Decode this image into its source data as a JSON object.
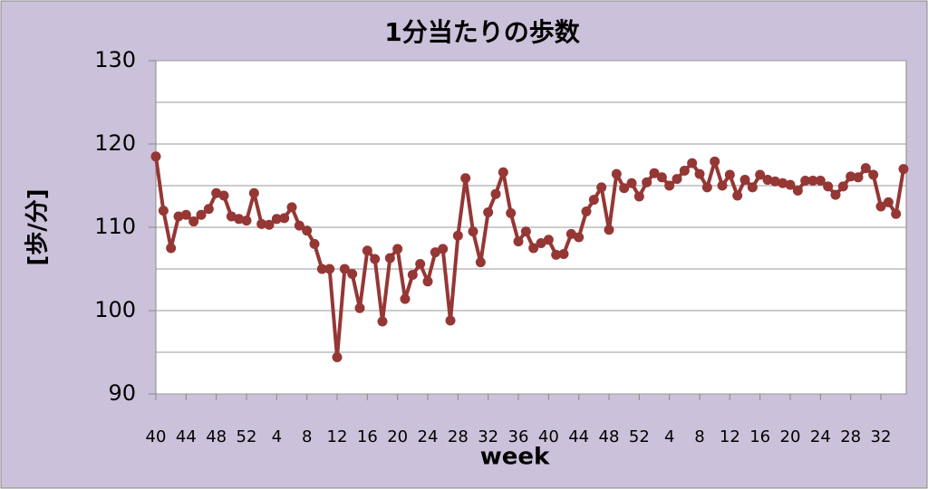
{
  "chart_data": {
    "type": "line",
    "title": "1分当たりの歩数",
    "y_label": "[歩/分]",
    "x_label": "week",
    "categories": [
      "40",
      null,
      null,
      null,
      "44",
      null,
      null,
      null,
      "48",
      null,
      null,
      null,
      "52",
      null,
      null,
      null,
      "4",
      null,
      null,
      null,
      "8",
      null,
      null,
      null,
      "12",
      null,
      null,
      null,
      "16",
      null,
      null,
      null,
      "20",
      null,
      null,
      null,
      "24",
      null,
      null,
      null,
      "28",
      null,
      null,
      null,
      "32",
      null,
      null,
      null,
      "36",
      null,
      null,
      null,
      "40",
      null,
      null,
      null,
      "44",
      null,
      null,
      null,
      "48",
      null,
      null,
      null,
      "52",
      null,
      null,
      null,
      "4",
      null,
      null,
      null,
      "8",
      null,
      null,
      null,
      "12",
      null,
      null,
      null,
      "16",
      null,
      null,
      null,
      "20",
      null,
      null,
      null,
      "24",
      null,
      null,
      null,
      "28",
      null,
      null,
      null,
      "32",
      null,
      null,
      null
    ],
    "values": [
      118.5,
      112,
      107.5,
      111.3,
      111.5,
      110.7,
      111.5,
      112.2,
      114.1,
      113.8,
      111.3,
      111,
      110.8,
      114.1,
      110.4,
      110.3,
      111,
      111.1,
      112.4,
      110.2,
      109.6,
      108,
      105,
      105,
      94.4,
      105,
      104.4,
      100.3,
      107.2,
      106.2,
      98.7,
      106.3,
      107.4,
      101.4,
      104.3,
      105.6,
      103.5,
      107,
      107.4,
      98.8,
      109,
      115.9,
      109.5,
      105.8,
      111.8,
      114,
      116.6,
      111.7,
      108.3,
      109.5,
      107.5,
      108.1,
      108.5,
      106.7,
      106.8,
      109.2,
      108.8,
      111.9,
      113.3,
      114.8,
      109.7,
      116.4,
      114.7,
      115.3,
      113.7,
      115.4,
      116.5,
      116,
      115,
      115.8,
      116.8,
      117.7,
      116.4,
      114.8,
      117.9,
      115,
      116.3,
      113.8,
      115.7,
      114.8,
      116.3,
      115.7,
      115.5,
      115.3,
      115.1,
      114.4,
      115.6,
      115.6,
      115.6,
      114.9,
      113.9,
      114.9,
      116.1,
      116,
      117.1,
      116.3,
      112.5,
      113,
      111.6,
      117
    ],
    "color": "#953735",
    "ylim": [
      90,
      130
    ],
    "yticks": [
      90,
      100,
      110,
      120,
      130
    ],
    "minor_yticks": [
      95,
      105,
      115,
      125
    ],
    "grid": true
  }
}
